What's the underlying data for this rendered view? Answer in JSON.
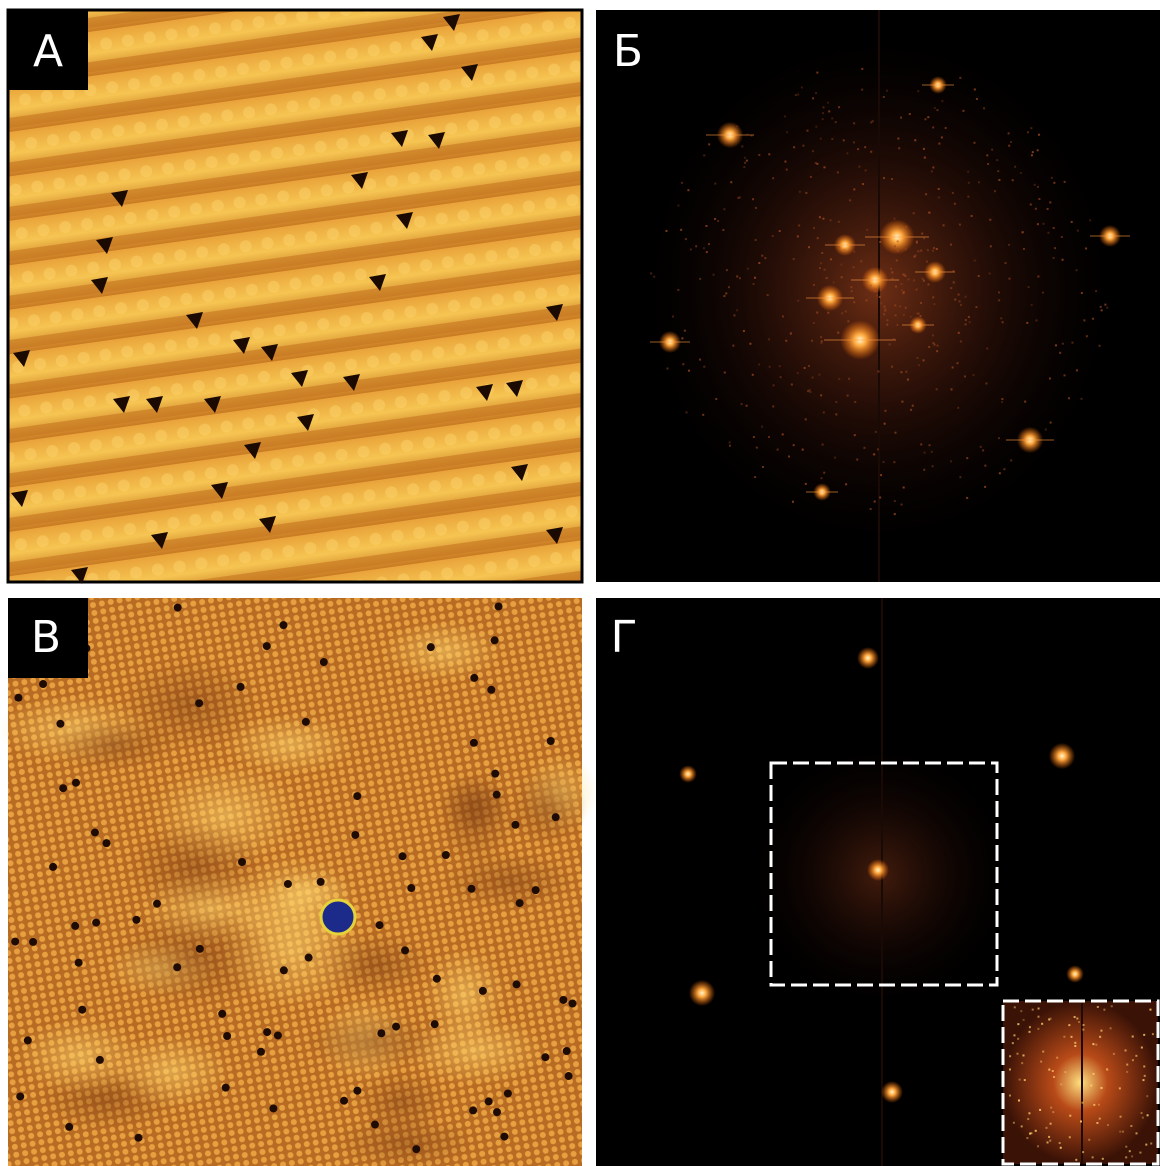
{
  "panels": [
    {
      "label": "А"
    },
    {
      "label": "Б"
    },
    {
      "label": "В"
    },
    {
      "label": "Г"
    }
  ]
}
